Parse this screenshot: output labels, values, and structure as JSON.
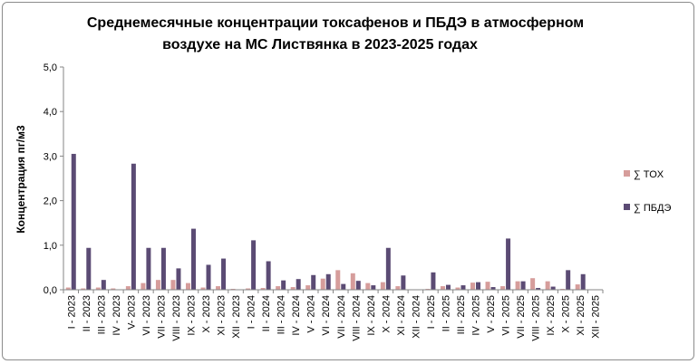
{
  "chart_data": {
    "type": "bar",
    "title_line1": "Среднемесячные концентрации токсафенов и ПБДЭ в атмосферном",
    "title_line2": "воздухе на МС Листвянка  в 2023-2025 годах",
    "xlabel": "",
    "ylabel": "Концентрация пг/м3",
    "ylim": [
      0,
      5
    ],
    "yticks": [
      "0,0",
      "1,0",
      "2,0",
      "3,0",
      "4,0",
      "5,0"
    ],
    "grid": false,
    "legend_position": "right",
    "categories": [
      "I - 2023",
      "II - 2023",
      "III - 2023",
      "IV - 2023",
      "V- 2023",
      "VI - 2023",
      "VII - 2023",
      "VIII - 2023",
      "IX - 2023",
      "X - 2023",
      "XI - 2023",
      "XII - 2023",
      "I - 2024",
      "II - 2024",
      "III - 2024",
      "IV - 2024",
      "V - 2024",
      "VI - 2024",
      "VII - 2024",
      "VIII - 2024",
      "IX - 2024",
      "X - 2024",
      "XI - 2024",
      "XII - 2024",
      "I - 2025",
      "II - 2025",
      "III - 2025",
      "IV - 2025",
      "V - 2025",
      "VI - 2025",
      "VII - 2025",
      "VIII - 2025",
      "IX - 2025",
      "X - 2025",
      "XI - 2025",
      "XII - 2025"
    ],
    "series": [
      {
        "name": "∑ TOX",
        "color": "#d69d9b",
        "values": [
          0.05,
          0.03,
          0.05,
          0.03,
          0.08,
          0.15,
          0.22,
          0.22,
          0.15,
          0.05,
          0.08,
          0.02,
          0.03,
          0.04,
          0.08,
          0.06,
          0.1,
          0.25,
          0.44,
          0.37,
          0.15,
          0.17,
          0.08,
          0.0,
          0.02,
          0.08,
          0.05,
          0.16,
          0.18,
          0.08,
          0.19,
          0.26,
          0.19,
          0.02,
          0.12,
          0.0
        ]
      },
      {
        "name": "∑ ПБДЭ",
        "color": "#5b4b74",
        "values": [
          3.05,
          0.94,
          0.22,
          0.01,
          2.83,
          0.94,
          0.94,
          0.48,
          1.37,
          0.56,
          0.7,
          0.0,
          1.11,
          0.64,
          0.21,
          0.24,
          0.33,
          0.35,
          0.13,
          0.2,
          0.1,
          0.94,
          0.32,
          0.0,
          0.39,
          0.11,
          0.1,
          0.17,
          0.06,
          1.15,
          0.19,
          0.04,
          0.07,
          0.44,
          0.35,
          0.0
        ]
      }
    ]
  }
}
